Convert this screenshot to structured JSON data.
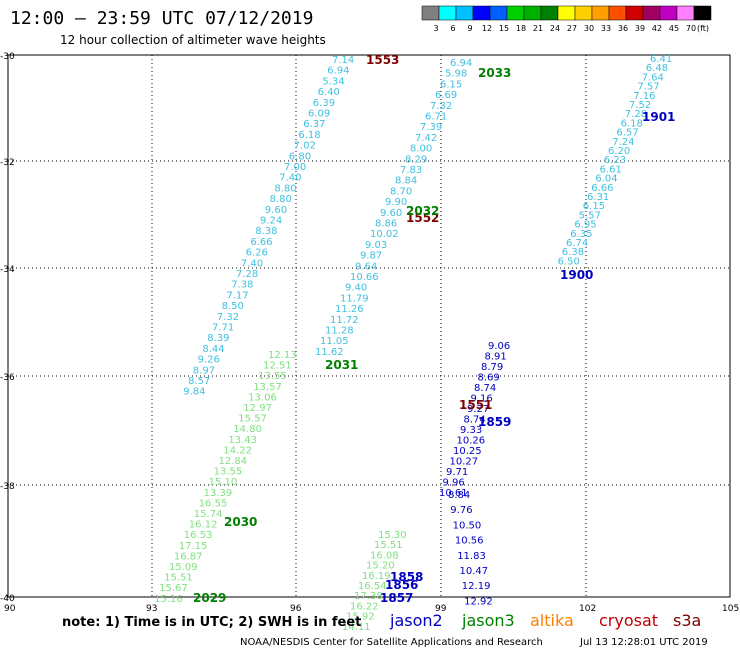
{
  "header": {
    "title": "12:00 – 23:59 UTC 07/12/2019",
    "subtitle": "12 hour collection of altimeter wave heights"
  },
  "scale": {
    "colors": [
      "#808080",
      "#00ffff",
      "#00c0ff",
      "#0000ff",
      "#0060ff",
      "#00d000",
      "#00b000",
      "#008000",
      "#ffff00",
      "#ffd000",
      "#ffa000",
      "#ff5000",
      "#d00000",
      "#a00060",
      "#c000c0",
      "#ff80ff",
      "#000000"
    ],
    "labels": [
      "3",
      "6",
      "9",
      "12",
      "15",
      "18",
      "21",
      "24",
      "27",
      "30",
      "33",
      "36",
      "39",
      "42",
      "45",
      "70"
    ],
    "unit": "(ft)"
  },
  "axes": {
    "lat_ticks": [
      "-30",
      "-32",
      "-34",
      "-36",
      "-38",
      "-40"
    ],
    "lon_ticks": [
      "90",
      "93",
      "96",
      "99",
      "102",
      "105"
    ]
  },
  "footer": {
    "note": "note:  1) Time is in UTC;  2) SWH is in feet",
    "satellites": [
      {
        "name": "jason2",
        "color": "#0000c0"
      },
      {
        "name": "jason3",
        "color": "#008000"
      },
      {
        "name": "altika",
        "color": "#ff8000"
      },
      {
        "name": "cryosat",
        "color": "#c00000"
      },
      {
        "name": "s3a",
        "color": "#800000"
      }
    ],
    "credit": "NOAA/NESDIS Center for Satellite Applications and Research",
    "timestamp": "Jul 13 12:28:01 UTC 2019"
  },
  "tracks": [
    {
      "id": "1553",
      "label": "1553",
      "label_color": "#800000",
      "color": "#40c0e0",
      "values": [
        "7.14",
        "6.94",
        "5.34",
        "6.40",
        "6.39",
        "6.09",
        "6.37",
        "6.18",
        "7.02",
        "6.80",
        "7.00",
        "7.40",
        "8.80",
        "8.80",
        "9.60",
        "9.24",
        "8.38",
        "6.66",
        "6.26",
        "7.40",
        "7.28",
        "7.38",
        "7.17",
        "8.50",
        "7.32",
        "7.71",
        "8.39",
        "8.44",
        "9.26",
        "8.97",
        "8.57",
        "9.84"
      ]
    },
    {
      "id": "2033",
      "label": "2033",
      "label_color": "#008000",
      "color": "#40c0e0",
      "values": [
        "6.94",
        "5.98",
        "6.15",
        "6.69",
        "7.32",
        "6.71",
        "7.39",
        "7.42",
        "8.00",
        "8.29",
        "7.83",
        "8.84",
        "8.70",
        "9.90",
        "9.60",
        "8.86",
        "10.02",
        "9.03",
        "9.87",
        "9.64",
        "10.66",
        "9.40",
        "11.79",
        "11.26",
        "11.72",
        "11.28",
        "11.05",
        "11.62"
      ]
    },
    {
      "id": "2031",
      "label": "2031",
      "label_color": "#008000",
      "color": "#80e080",
      "values": [
        "12.13",
        "12.51",
        "13.55",
        "13.57",
        "13.06",
        "12.97",
        "15.57",
        "14.80",
        "13.43",
        "14.22",
        "12.84",
        "13.55",
        "15.10",
        "13.39",
        "16.55",
        "15.74",
        "16.12",
        "16.53",
        "17.15",
        "16.87",
        "15.09",
        "15.51",
        "15.67",
        "15.16"
      ]
    },
    {
      "id": "1901",
      "label": "1901",
      "label_color": "#0000c0",
      "color": "#40c0e0",
      "values": [
        "6.41",
        "6.48",
        "7.64",
        "7.57",
        "7.16",
        "7.52",
        "7.28",
        "6.18",
        "6.57",
        "7.24",
        "6.20",
        "6.23",
        "6.61",
        "6.04",
        "6.66",
        "6.31",
        "6.15",
        "5.57",
        "6.95",
        "6.35",
        "6.74",
        "6.38",
        "6.50"
      ]
    },
    {
      "id": "1859",
      "label": "1859",
      "label_color": "#0000c0",
      "color": "#0000c0",
      "values": [
        "9.06",
        "8.91",
        "8.79",
        "8.69",
        "8.74",
        "9.16",
        "9.27",
        "8.74",
        "9.33",
        "10.26",
        "10.25",
        "10.27",
        "9.71",
        "9.96",
        "10.61"
      ]
    },
    {
      "id": "2030",
      "label": "2030",
      "label_color": "#008000",
      "color": "#80e080",
      "values": [
        "15.30",
        "15.51",
        "16.08",
        "15.20",
        "16.19",
        "16.54",
        "17.38",
        "16.22",
        "15.92",
        "14.11"
      ]
    },
    {
      "id": "1857",
      "label": "1857",
      "label_color": "#0000c0",
      "color": "#0000c0",
      "values": [
        "8.84",
        "9.76",
        "10.50",
        "10.56",
        "11.83",
        "10.47",
        "12.19",
        "12.92"
      ]
    },
    {
      "id": "1552",
      "label": "1552",
      "label_color": "#800000",
      "color": "#0000c0",
      "values": []
    },
    {
      "id": "2032",
      "label": "2032",
      "label_color": "#008000",
      "color": "#008000",
      "values": []
    },
    {
      "id": "2029",
      "label": "2029",
      "label_color": "#008000",
      "color": "#80e080",
      "values": []
    },
    {
      "id": "1900",
      "label": "1900",
      "label_color": "#0000c0",
      "color": "#0000c0",
      "values": []
    },
    {
      "id": "1551",
      "label": "1551",
      "label_color": "#800000",
      "color": "#800000",
      "values": []
    },
    {
      "id": "1858",
      "label": "1858",
      "label_color": "#0000c0",
      "color": "#0000c0",
      "values": []
    },
    {
      "id": "1856",
      "label": "1856",
      "label_color": "#0000c0",
      "color": "#0000c0",
      "values": []
    }
  ]
}
